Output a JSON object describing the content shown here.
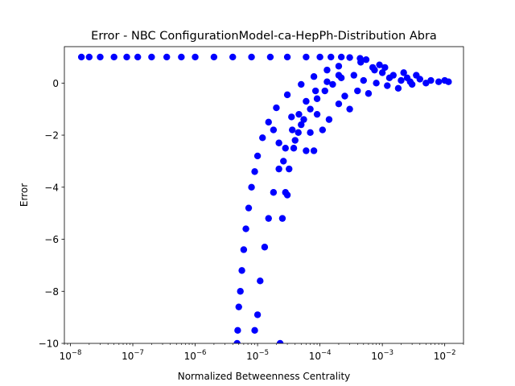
{
  "chart_data": {
    "type": "scatter",
    "title": "Error - NBC ConfigurationModel-ca-HepPh-Distribution Abra",
    "xlabel": "Normalized Betweenness Centrality",
    "ylabel": "Error",
    "xscale": "log",
    "xlim": [
      8e-09,
      0.02
    ],
    "ylim": [
      -10,
      1.4
    ],
    "grid": false,
    "legend": "none",
    "marker_color": "#0000ff",
    "x_ticks": [
      {
        "value": 1e-08,
        "base": "10",
        "exp": "−8"
      },
      {
        "value": 1e-07,
        "base": "10",
        "exp": "−7"
      },
      {
        "value": 1e-06,
        "base": "10",
        "exp": "−6"
      },
      {
        "value": 1e-05,
        "base": "10",
        "exp": "−5"
      },
      {
        "value": 0.0001,
        "base": "10",
        "exp": "−4"
      },
      {
        "value": 0.001,
        "base": "10",
        "exp": "−3"
      },
      {
        "value": 0.01,
        "base": "10",
        "exp": "−2"
      }
    ],
    "y_ticks": [
      {
        "value": 0,
        "label": "0"
      },
      {
        "value": -2,
        "label": "−2"
      },
      {
        "value": -4,
        "label": "−4"
      },
      {
        "value": -6,
        "label": "−6"
      },
      {
        "value": -8,
        "label": "−8"
      },
      {
        "value": -10,
        "label": "−10"
      }
    ],
    "points": [
      [
        1.5e-08,
        1.0
      ],
      [
        2e-08,
        1.0
      ],
      [
        3e-08,
        1.0
      ],
      [
        5e-08,
        1.0
      ],
      [
        8e-08,
        1.0
      ],
      [
        1.2e-07,
        1.0
      ],
      [
        2e-07,
        1.0
      ],
      [
        3.5e-07,
        1.0
      ],
      [
        6e-07,
        1.0
      ],
      [
        1e-06,
        1.0
      ],
      [
        2e-06,
        1.0
      ],
      [
        4e-06,
        1.0
      ],
      [
        8e-06,
        1.0
      ],
      [
        1.6e-05,
        1.0
      ],
      [
        3e-05,
        1.0
      ],
      [
        6e-05,
        1.0
      ],
      [
        0.0001,
        1.0
      ],
      [
        0.00015,
        1.0
      ],
      [
        0.00022,
        1.0
      ],
      [
        0.0003,
        0.98
      ],
      [
        4.7e-06,
        -10.0
      ],
      [
        4.8e-06,
        -9.5
      ],
      [
        5e-06,
        -8.6
      ],
      [
        5.3e-06,
        -8.0
      ],
      [
        5.6e-06,
        -7.2
      ],
      [
        6e-06,
        -6.4
      ],
      [
        6.5e-06,
        -5.6
      ],
      [
        7.2e-06,
        -4.8
      ],
      [
        8e-06,
        -4.0
      ],
      [
        9e-06,
        -3.4
      ],
      [
        1e-05,
        -2.8
      ],
      [
        1.2e-05,
        -2.1
      ],
      [
        1.5e-05,
        -1.5
      ],
      [
        2e-05,
        -0.95
      ],
      [
        3e-05,
        -0.45
      ],
      [
        5e-05,
        -0.05
      ],
      [
        8e-05,
        0.25
      ],
      [
        0.00013,
        0.5
      ],
      [
        0.0002,
        0.65
      ],
      [
        9e-06,
        -9.5
      ],
      [
        1e-05,
        -8.9
      ],
      [
        1.1e-05,
        -7.6
      ],
      [
        1.3e-05,
        -6.3
      ],
      [
        1.5e-05,
        -5.2
      ],
      [
        1.8e-05,
        -4.2
      ],
      [
        2.2e-05,
        -3.3
      ],
      [
        2.8e-05,
        -2.5
      ],
      [
        3.6e-05,
        -1.8
      ],
      [
        4.6e-05,
        -1.2
      ],
      [
        6e-05,
        -0.7
      ],
      [
        8.5e-05,
        -0.3
      ],
      [
        0.00013,
        0.05
      ],
      [
        0.0002,
        0.3
      ],
      [
        2.3e-05,
        -10.0
      ],
      [
        2.5e-05,
        -5.2
      ],
      [
        2.8e-05,
        -4.2
      ],
      [
        3.2e-05,
        -3.3
      ],
      [
        3.8e-05,
        -2.5
      ],
      [
        4.5e-05,
        -1.9
      ],
      [
        5.5e-05,
        -1.4
      ],
      [
        7e-05,
        -1.0
      ],
      [
        9e-05,
        -0.6
      ],
      [
        0.00012,
        -0.3
      ],
      [
        0.00016,
        -0.05
      ],
      [
        0.00022,
        0.2
      ],
      [
        1.8e-05,
        -1.8
      ],
      [
        2.2e-05,
        -2.3
      ],
      [
        2.6e-05,
        -3.0
      ],
      [
        3e-05,
        -4.3
      ],
      [
        3.5e-05,
        -1.3
      ],
      [
        4e-05,
        -2.2
      ],
      [
        5e-05,
        -1.6
      ],
      [
        6e-05,
        -2.6
      ],
      [
        7e-05,
        -1.9
      ],
      [
        8e-05,
        -2.6
      ],
      [
        9e-05,
        -1.2
      ],
      [
        0.00011,
        -1.8
      ],
      [
        0.00014,
        -1.4
      ],
      [
        0.0002,
        -0.8
      ],
      [
        0.00025,
        -0.5
      ],
      [
        0.0003,
        -1.0
      ],
      [
        0.00035,
        0.3
      ],
      [
        0.0004,
        -0.3
      ],
      [
        0.00045,
        0.8
      ],
      [
        0.0005,
        0.1
      ],
      [
        0.0006,
        -0.4
      ],
      [
        0.0007,
        0.6
      ],
      [
        0.0008,
        0.0
      ],
      [
        0.001,
        0.4
      ],
      [
        0.0012,
        -0.1
      ],
      [
        0.0015,
        0.3
      ],
      [
        0.002,
        0.1
      ],
      [
        0.0025,
        0.2
      ],
      [
        0.003,
        -0.05
      ],
      [
        0.004,
        0.15
      ],
      [
        0.005,
        0.0
      ],
      [
        0.006,
        0.1
      ],
      [
        0.008,
        0.05
      ],
      [
        0.01,
        0.1
      ],
      [
        0.0115,
        0.05
      ],
      [
        0.00044,
        0.95
      ],
      [
        0.00055,
        0.9
      ],
      [
        0.00075,
        0.5
      ],
      [
        0.0009,
        0.7
      ],
      [
        0.0011,
        0.6
      ],
      [
        0.0013,
        0.2
      ],
      [
        0.0018,
        -0.2
      ],
      [
        0.0022,
        0.4
      ],
      [
        0.0028,
        0.05
      ],
      [
        0.0035,
        0.3
      ]
    ]
  }
}
